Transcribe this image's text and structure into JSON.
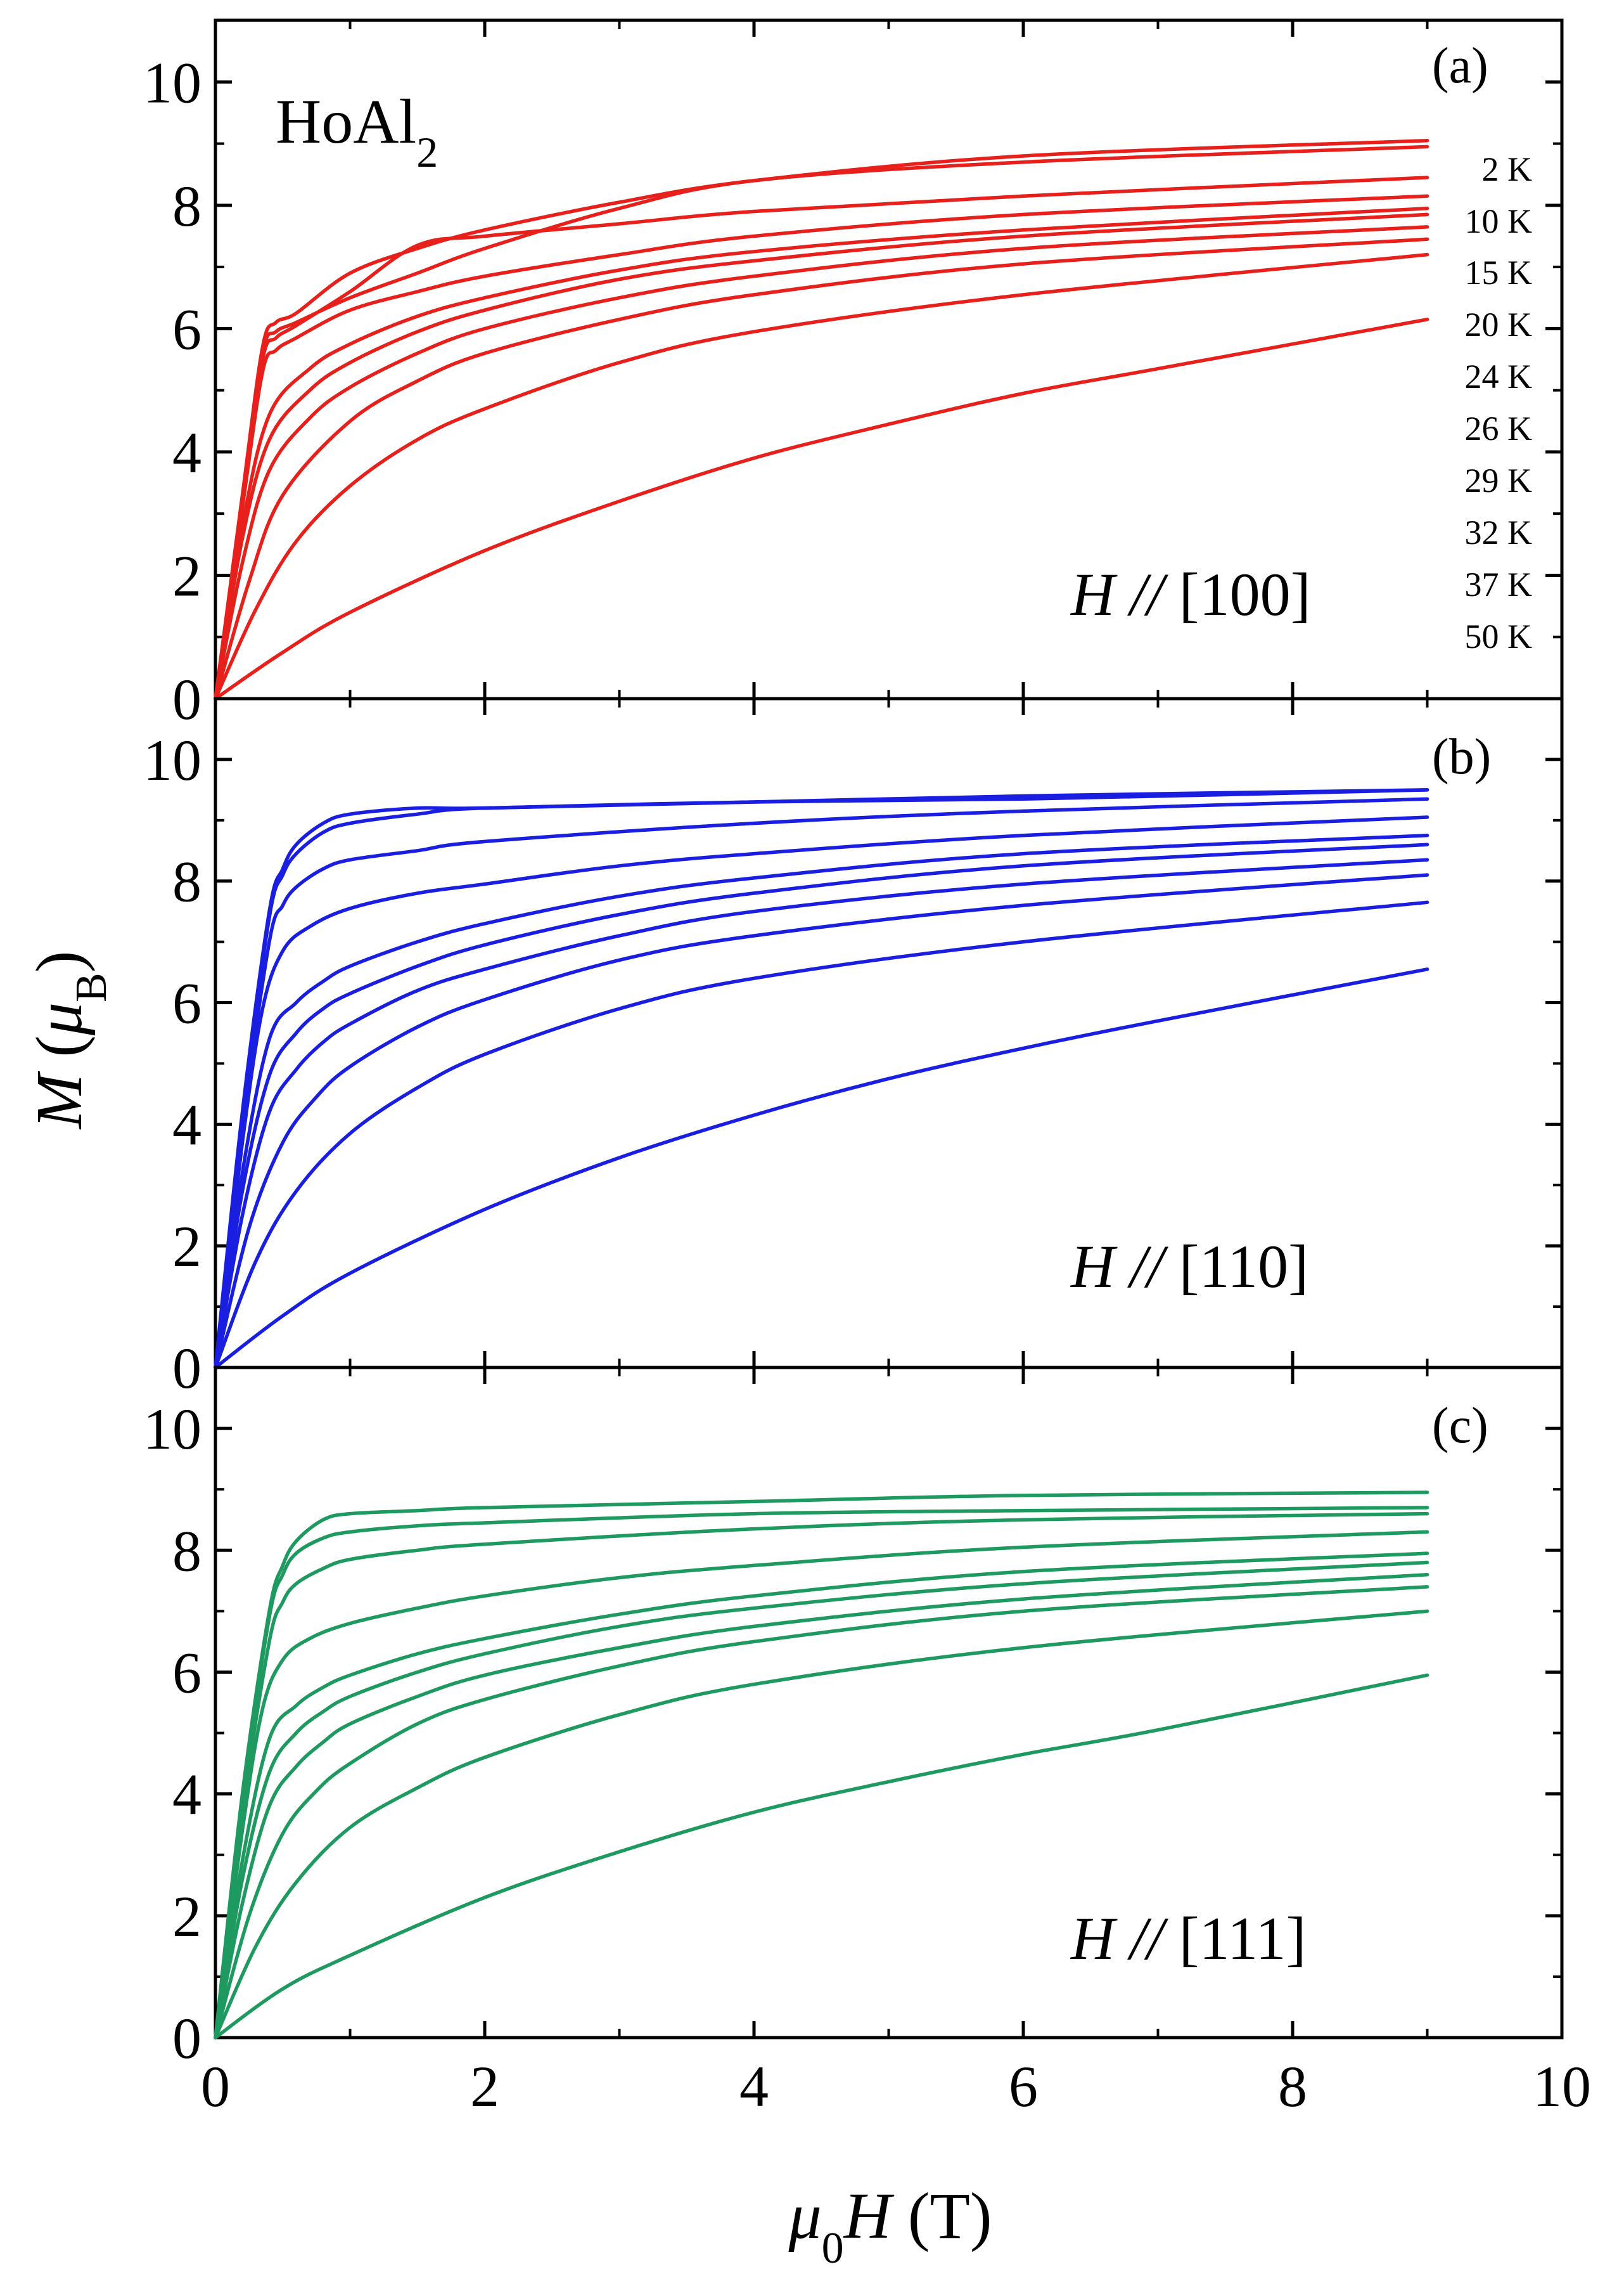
{
  "compound": {
    "base": "HoAl",
    "sub": "2"
  },
  "axes": {
    "xlabel": {
      "pre": "μ",
      "sub": "0",
      "var": "H",
      "unit": "(T)"
    },
    "ylabel": {
      "var": "M",
      "open": "(",
      "mu": "μ",
      "sub": "B",
      "close": ")"
    }
  },
  "temperatures": [
    "2 K",
    "10 K",
    "15 K",
    "20 K",
    "24 K",
    "26 K",
    "29 K",
    "32 K",
    "37 K",
    "50 K"
  ],
  "chart_data": [
    {
      "type": "line",
      "panel": "(a)",
      "direction": {
        "var": "H",
        "sep": "//",
        "axis": "[100]"
      },
      "color": "#e8201c",
      "xlim": [
        0,
        10
      ],
      "ylim": [
        0,
        11
      ],
      "xticks": [
        0,
        2,
        4,
        6,
        8,
        10
      ],
      "yticks": [
        0,
        2,
        4,
        6,
        8,
        10
      ],
      "series": [
        {
          "name": "2 K",
          "x": [
            0,
            0.2,
            0.35,
            0.45,
            0.6,
            1.0,
            1.5,
            2,
            3,
            4,
            6,
            9
          ],
          "y": [
            0,
            3.2,
            5.6,
            5.95,
            6.1,
            6.5,
            6.9,
            7.3,
            7.95,
            8.4,
            8.7,
            8.95
          ]
        },
        {
          "name": "10 K",
          "x": [
            0,
            0.2,
            0.35,
            0.45,
            0.6,
            1.0,
            1.5,
            2,
            3,
            4,
            6,
            9
          ],
          "y": [
            0,
            3.3,
            5.7,
            6.1,
            6.25,
            6.9,
            7.3,
            7.6,
            8.05,
            8.4,
            8.8,
            9.05
          ]
        },
        {
          "name": "15 K",
          "x": [
            0,
            0.2,
            0.35,
            0.45,
            0.6,
            1.0,
            1.5,
            2,
            3,
            4,
            6,
            9
          ],
          "y": [
            0,
            3.2,
            5.5,
            5.85,
            6.05,
            6.6,
            7.35,
            7.5,
            7.7,
            7.9,
            8.15,
            8.45
          ]
        },
        {
          "name": "20 K",
          "x": [
            0,
            0.2,
            0.35,
            0.45,
            0.6,
            1.0,
            1.5,
            2,
            3,
            4,
            6,
            9
          ],
          "y": [
            0,
            3.1,
            5.3,
            5.65,
            5.85,
            6.3,
            6.6,
            6.85,
            7.2,
            7.5,
            7.85,
            8.15
          ]
        },
        {
          "name": "24 K",
          "x": [
            0,
            0.2,
            0.4,
            0.7,
            1.0,
            1.5,
            2,
            3,
            4,
            6,
            9
          ],
          "y": [
            0,
            2.8,
            4.6,
            5.35,
            5.75,
            6.2,
            6.5,
            6.95,
            7.25,
            7.6,
            7.95
          ]
        },
        {
          "name": "26 K",
          "x": [
            0,
            0.2,
            0.4,
            0.7,
            1.0,
            1.5,
            2,
            3,
            4,
            6,
            9
          ],
          "y": [
            0,
            2.6,
            4.2,
            5.0,
            5.45,
            5.95,
            6.3,
            6.8,
            7.1,
            7.5,
            7.85
          ]
        },
        {
          "name": "29 K",
          "x": [
            0,
            0.2,
            0.4,
            0.7,
            1.0,
            1.5,
            2,
            3,
            4,
            6,
            9
          ],
          "y": [
            0,
            2.2,
            3.7,
            4.55,
            5.05,
            5.6,
            6.0,
            6.5,
            6.85,
            7.3,
            7.65
          ]
        },
        {
          "name": "32 K",
          "x": [
            0,
            0.25,
            0.5,
            1.0,
            1.5,
            2,
            3,
            4,
            6,
            9
          ],
          "y": [
            0,
            1.9,
            3.3,
            4.5,
            5.15,
            5.6,
            6.15,
            6.55,
            7.05,
            7.45
          ]
        },
        {
          "name": "37 K",
          "x": [
            0,
            0.3,
            0.6,
            1.0,
            1.5,
            2,
            3,
            4,
            6,
            9
          ],
          "y": [
            0,
            1.45,
            2.55,
            3.45,
            4.2,
            4.7,
            5.45,
            5.95,
            6.55,
            7.2
          ]
        },
        {
          "name": "50 K",
          "x": [
            0,
            0.5,
            1.0,
            2,
            3,
            4,
            5,
            6,
            7,
            9
          ],
          "y": [
            0,
            0.75,
            1.4,
            2.4,
            3.2,
            3.9,
            4.45,
            4.95,
            5.35,
            6.15
          ]
        }
      ]
    },
    {
      "type": "line",
      "panel": "(b)",
      "direction": {
        "var": "H",
        "sep": "//",
        "axis": "[110]"
      },
      "color": "#1a1ee0",
      "xlim": [
        0,
        10
      ],
      "ylim": [
        0,
        11
      ],
      "xticks": [
        0,
        2,
        4,
        6,
        8,
        10
      ],
      "yticks": [
        0,
        2,
        4,
        6,
        8,
        10
      ],
      "series": [
        {
          "name": "2 K",
          "x": [
            0,
            0.2,
            0.4,
            0.5,
            0.6,
            0.8,
            1.0,
            1.5,
            2,
            4,
            6,
            9
          ],
          "y": [
            0,
            4.2,
            7.5,
            8.2,
            8.6,
            8.95,
            9.1,
            9.2,
            9.2,
            9.3,
            9.4,
            9.5
          ]
        },
        {
          "name": "10 K",
          "x": [
            0,
            0.2,
            0.4,
            0.5,
            0.6,
            0.8,
            1.0,
            1.5,
            2,
            4,
            6,
            9
          ],
          "y": [
            0,
            4.1,
            7.4,
            8.1,
            8.45,
            8.8,
            8.95,
            9.1,
            9.2,
            9.3,
            9.35,
            9.5
          ]
        },
        {
          "name": "15 K",
          "x": [
            0,
            0.2,
            0.4,
            0.5,
            0.6,
            0.8,
            1.0,
            1.5,
            2,
            4,
            6,
            9
          ],
          "y": [
            0,
            3.9,
            7.0,
            7.6,
            7.9,
            8.2,
            8.35,
            8.5,
            8.65,
            8.95,
            9.15,
            9.35
          ]
        },
        {
          "name": "20 K",
          "x": [
            0,
            0.2,
            0.35,
            0.5,
            0.7,
            1.0,
            1.5,
            2,
            3,
            4,
            6,
            9
          ],
          "y": [
            0,
            3.7,
            5.9,
            6.85,
            7.25,
            7.55,
            7.8,
            7.95,
            8.25,
            8.45,
            8.75,
            9.05
          ]
        },
        {
          "name": "24 K",
          "x": [
            0,
            0.2,
            0.4,
            0.6,
            0.8,
            1.0,
            1.5,
            2,
            3,
            4,
            6,
            9
          ],
          "y": [
            0,
            3.2,
            5.4,
            6.0,
            6.35,
            6.6,
            7.0,
            7.3,
            7.75,
            8.05,
            8.45,
            8.75
          ]
        },
        {
          "name": "26 K",
          "x": [
            0,
            0.2,
            0.4,
            0.6,
            0.8,
            1.0,
            1.5,
            2,
            3,
            4,
            6,
            9
          ],
          "y": [
            0,
            2.9,
            4.8,
            5.5,
            5.9,
            6.15,
            6.6,
            6.95,
            7.45,
            7.8,
            8.25,
            8.6
          ]
        },
        {
          "name": "29 K",
          "x": [
            0,
            0.2,
            0.4,
            0.6,
            0.8,
            1.0,
            1.5,
            2,
            3,
            4,
            6,
            9
          ],
          "y": [
            0,
            2.5,
            4.2,
            4.9,
            5.35,
            5.65,
            6.2,
            6.55,
            7.1,
            7.5,
            7.95,
            8.35
          ]
        },
        {
          "name": "32 K",
          "x": [
            0,
            0.25,
            0.5,
            0.75,
            1.0,
            1.5,
            2,
            3,
            4,
            6,
            9
          ],
          "y": [
            0,
            2.3,
            3.7,
            4.45,
            4.95,
            5.6,
            6.05,
            6.7,
            7.1,
            7.6,
            8.1
          ]
        },
        {
          "name": "37 K",
          "x": [
            0,
            0.3,
            0.6,
            1.0,
            1.5,
            2,
            3,
            4,
            6,
            9
          ],
          "y": [
            0,
            1.75,
            2.9,
            3.85,
            4.6,
            5.15,
            5.9,
            6.4,
            7.0,
            7.65
          ]
        },
        {
          "name": "50 K",
          "x": [
            0,
            0.5,
            1.0,
            2,
            3,
            4,
            5,
            6,
            7,
            9
          ],
          "y": [
            0,
            0.85,
            1.55,
            2.6,
            3.45,
            4.15,
            4.75,
            5.25,
            5.7,
            6.55
          ]
        }
      ]
    },
    {
      "type": "line",
      "panel": "(c)",
      "direction": {
        "var": "H",
        "sep": "//",
        "axis": "[111]"
      },
      "color": "#1e9960",
      "xlim": [
        0,
        10
      ],
      "ylim": [
        0,
        11
      ],
      "xticks": [
        0,
        2,
        4,
        6,
        8,
        10
      ],
      "yticks": [
        0,
        2,
        4,
        6,
        8,
        10
      ],
      "series": [
        {
          "name": "2 K",
          "x": [
            0,
            0.2,
            0.4,
            0.5,
            0.6,
            0.8,
            1.0,
            1.5,
            2,
            4,
            6,
            9
          ],
          "y": [
            0,
            4.0,
            7.0,
            7.75,
            8.15,
            8.5,
            8.6,
            8.65,
            8.7,
            8.8,
            8.9,
            8.95
          ]
        },
        {
          "name": "10 K",
          "x": [
            0,
            0.2,
            0.4,
            0.5,
            0.6,
            0.8,
            1.0,
            1.5,
            2,
            4,
            6,
            9
          ],
          "y": [
            0,
            3.9,
            6.9,
            7.6,
            7.95,
            8.2,
            8.3,
            8.4,
            8.45,
            8.6,
            8.65,
            8.7
          ]
        },
        {
          "name": "15 K",
          "x": [
            0,
            0.2,
            0.4,
            0.5,
            0.6,
            0.8,
            1.0,
            1.5,
            2,
            4,
            6,
            9
          ],
          "y": [
            0,
            3.7,
            6.5,
            7.15,
            7.45,
            7.7,
            7.85,
            8.0,
            8.1,
            8.35,
            8.5,
            8.6
          ]
        },
        {
          "name": "20 K",
          "x": [
            0,
            0.2,
            0.35,
            0.5,
            0.7,
            1.0,
            1.5,
            2,
            3,
            4,
            6,
            9
          ],
          "y": [
            0,
            3.4,
            5.4,
            6.2,
            6.55,
            6.8,
            7.05,
            7.25,
            7.55,
            7.75,
            8.05,
            8.3
          ]
        },
        {
          "name": "24 K",
          "x": [
            0,
            0.2,
            0.4,
            0.6,
            0.8,
            1.0,
            1.5,
            2,
            3,
            4,
            6,
            9
          ],
          "y": [
            0,
            2.9,
            4.9,
            5.45,
            5.75,
            5.95,
            6.3,
            6.55,
            6.95,
            7.25,
            7.65,
            7.95
          ]
        },
        {
          "name": "26 K",
          "x": [
            0,
            0.2,
            0.4,
            0.6,
            0.8,
            1.0,
            1.5,
            2,
            3,
            4,
            6,
            9
          ],
          "y": [
            0,
            2.6,
            4.35,
            5.0,
            5.35,
            5.6,
            6.0,
            6.3,
            6.75,
            7.05,
            7.45,
            7.8
          ]
        },
        {
          "name": "29 K",
          "x": [
            0,
            0.2,
            0.4,
            0.6,
            0.8,
            1.0,
            1.5,
            2,
            3,
            4,
            6,
            9
          ],
          "y": [
            0,
            2.2,
            3.8,
            4.45,
            4.85,
            5.15,
            5.6,
            5.95,
            6.4,
            6.75,
            7.2,
            7.6
          ]
        },
        {
          "name": "32 K",
          "x": [
            0,
            0.25,
            0.5,
            0.75,
            1.0,
            1.5,
            2,
            3,
            4,
            6,
            9
          ],
          "y": [
            0,
            2.0,
            3.35,
            4.05,
            4.5,
            5.15,
            5.55,
            6.1,
            6.5,
            7.0,
            7.4
          ]
        },
        {
          "name": "37 K",
          "x": [
            0,
            0.3,
            0.6,
            1.0,
            1.5,
            2,
            3,
            4,
            6,
            9
          ],
          "y": [
            0,
            1.5,
            2.55,
            3.45,
            4.1,
            4.6,
            5.3,
            5.8,
            6.4,
            7.0
          ]
        },
        {
          "name": "50 K",
          "x": [
            0,
            0.5,
            1.0,
            2,
            3,
            4,
            5,
            6,
            7,
            9
          ],
          "y": [
            0,
            0.8,
            1.35,
            2.3,
            3.05,
            3.7,
            4.2,
            4.65,
            5.05,
            5.95
          ]
        }
      ]
    }
  ]
}
